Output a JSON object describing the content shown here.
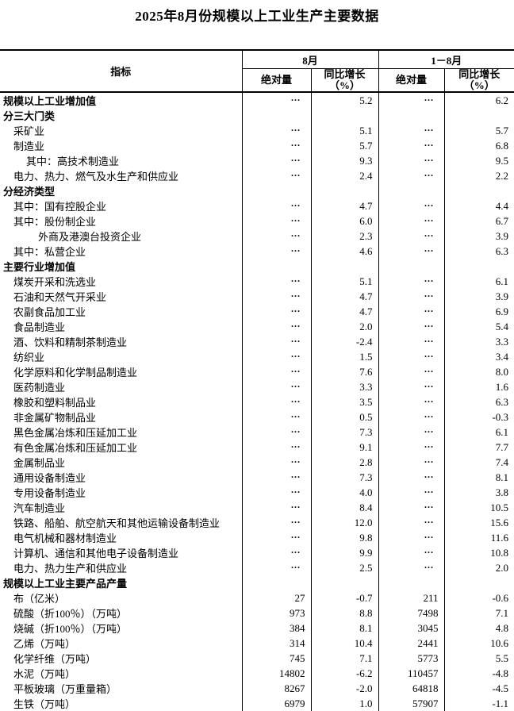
{
  "title": "2025年8月份规模以上工业生产主要数据",
  "table": {
    "header": {
      "indicator": "指标",
      "group_aug": "8月",
      "group_cum": "1－8月",
      "abs_label": "绝对量",
      "yoy_label": "同比增长",
      "yoy_unit": "（%）"
    },
    "rows": [
      {
        "label": "规模以上工业增加值",
        "indent": 0,
        "bold": true,
        "aug_abs": "···",
        "aug_yoy": "5.2",
        "cum_abs": "···",
        "cum_yoy": "6.2"
      },
      {
        "label": "分三大门类",
        "indent": 0,
        "bold": true,
        "aug_abs": "",
        "aug_yoy": "",
        "cum_abs": "",
        "cum_yoy": ""
      },
      {
        "label": "采矿业",
        "indent": 1,
        "bold": false,
        "aug_abs": "···",
        "aug_yoy": "5.1",
        "cum_abs": "···",
        "cum_yoy": "5.7"
      },
      {
        "label": "制造业",
        "indent": 1,
        "bold": false,
        "aug_abs": "···",
        "aug_yoy": "5.7",
        "cum_abs": "···",
        "cum_yoy": "6.8"
      },
      {
        "label": "其中：高技术制造业",
        "indent": 2,
        "bold": false,
        "aug_abs": "···",
        "aug_yoy": "9.3",
        "cum_abs": "···",
        "cum_yoy": "9.5"
      },
      {
        "label": "电力、热力、燃气及水生产和供应业",
        "indent": 1,
        "bold": false,
        "aug_abs": "···",
        "aug_yoy": "2.4",
        "cum_abs": "···",
        "cum_yoy": "2.2"
      },
      {
        "label": "分经济类型",
        "indent": 0,
        "bold": true,
        "aug_abs": "",
        "aug_yoy": "",
        "cum_abs": "",
        "cum_yoy": ""
      },
      {
        "label": "其中：国有控股企业",
        "indent": 1,
        "bold": false,
        "aug_abs": "···",
        "aug_yoy": "4.7",
        "cum_abs": "···",
        "cum_yoy": "4.4"
      },
      {
        "label": "其中：股份制企业",
        "indent": 1,
        "bold": false,
        "aug_abs": "···",
        "aug_yoy": "6.0",
        "cum_abs": "···",
        "cum_yoy": "6.7"
      },
      {
        "label": "外商及港澳台投资企业",
        "indent": 3,
        "bold": false,
        "aug_abs": "···",
        "aug_yoy": "2.3",
        "cum_abs": "···",
        "cum_yoy": "3.9"
      },
      {
        "label": "其中：私营企业",
        "indent": 1,
        "bold": false,
        "aug_abs": "···",
        "aug_yoy": "4.6",
        "cum_abs": "···",
        "cum_yoy": "6.3"
      },
      {
        "label": "主要行业增加值",
        "indent": 0,
        "bold": true,
        "aug_abs": "",
        "aug_yoy": "",
        "cum_abs": "",
        "cum_yoy": ""
      },
      {
        "label": "煤炭开采和洗选业",
        "indent": 1,
        "bold": false,
        "aug_abs": "···",
        "aug_yoy": "5.1",
        "cum_abs": "···",
        "cum_yoy": "6.1"
      },
      {
        "label": "石油和天然气开采业",
        "indent": 1,
        "bold": false,
        "aug_abs": "···",
        "aug_yoy": "4.7",
        "cum_abs": "···",
        "cum_yoy": "3.9"
      },
      {
        "label": "农副食品加工业",
        "indent": 1,
        "bold": false,
        "aug_abs": "···",
        "aug_yoy": "4.7",
        "cum_abs": "···",
        "cum_yoy": "6.9"
      },
      {
        "label": "食品制造业",
        "indent": 1,
        "bold": false,
        "aug_abs": "···",
        "aug_yoy": "2.0",
        "cum_abs": "···",
        "cum_yoy": "5.4"
      },
      {
        "label": "酒、饮料和精制茶制造业",
        "indent": 1,
        "bold": false,
        "aug_abs": "···",
        "aug_yoy": "-2.4",
        "cum_abs": "···",
        "cum_yoy": "3.3"
      },
      {
        "label": "纺织业",
        "indent": 1,
        "bold": false,
        "aug_abs": "···",
        "aug_yoy": "1.5",
        "cum_abs": "···",
        "cum_yoy": "3.4"
      },
      {
        "label": "化学原料和化学制品制造业",
        "indent": 1,
        "bold": false,
        "aug_abs": "···",
        "aug_yoy": "7.6",
        "cum_abs": "···",
        "cum_yoy": "8.0"
      },
      {
        "label": "医药制造业",
        "indent": 1,
        "bold": false,
        "aug_abs": "···",
        "aug_yoy": "3.3",
        "cum_abs": "···",
        "cum_yoy": "1.6"
      },
      {
        "label": "橡胶和塑料制品业",
        "indent": 1,
        "bold": false,
        "aug_abs": "···",
        "aug_yoy": "3.5",
        "cum_abs": "···",
        "cum_yoy": "6.3"
      },
      {
        "label": "非金属矿物制品业",
        "indent": 1,
        "bold": false,
        "aug_abs": "···",
        "aug_yoy": "0.5",
        "cum_abs": "···",
        "cum_yoy": "-0.3"
      },
      {
        "label": "黑色金属冶炼和压延加工业",
        "indent": 1,
        "bold": false,
        "aug_abs": "···",
        "aug_yoy": "7.3",
        "cum_abs": "···",
        "cum_yoy": "6.1"
      },
      {
        "label": "有色金属冶炼和压延加工业",
        "indent": 1,
        "bold": false,
        "aug_abs": "···",
        "aug_yoy": "9.1",
        "cum_abs": "···",
        "cum_yoy": "7.7"
      },
      {
        "label": "金属制品业",
        "indent": 1,
        "bold": false,
        "aug_abs": "···",
        "aug_yoy": "2.8",
        "cum_abs": "···",
        "cum_yoy": "7.4"
      },
      {
        "label": "通用设备制造业",
        "indent": 1,
        "bold": false,
        "aug_abs": "···",
        "aug_yoy": "7.3",
        "cum_abs": "···",
        "cum_yoy": "8.1"
      },
      {
        "label": "专用设备制造业",
        "indent": 1,
        "bold": false,
        "aug_abs": "···",
        "aug_yoy": "4.0",
        "cum_abs": "···",
        "cum_yoy": "3.8"
      },
      {
        "label": "汽车制造业",
        "indent": 1,
        "bold": false,
        "aug_abs": "···",
        "aug_yoy": "8.4",
        "cum_abs": "···",
        "cum_yoy": "10.5"
      },
      {
        "label": "铁路、船舶、航空航天和其他运输设备制造业",
        "indent": 1,
        "bold": false,
        "aug_abs": "···",
        "aug_yoy": "12.0",
        "cum_abs": "···",
        "cum_yoy": "15.6"
      },
      {
        "label": "电气机械和器材制造业",
        "indent": 1,
        "bold": false,
        "aug_abs": "···",
        "aug_yoy": "9.8",
        "cum_abs": "···",
        "cum_yoy": "11.6"
      },
      {
        "label": "计算机、通信和其他电子设备制造业",
        "indent": 1,
        "bold": false,
        "aug_abs": "···",
        "aug_yoy": "9.9",
        "cum_abs": "···",
        "cum_yoy": "10.8"
      },
      {
        "label": "电力、热力生产和供应业",
        "indent": 1,
        "bold": false,
        "aug_abs": "···",
        "aug_yoy": "2.5",
        "cum_abs": "···",
        "cum_yoy": "2.0"
      },
      {
        "label": "规模以上工业主要产品产量",
        "indent": 0,
        "bold": true,
        "aug_abs": "",
        "aug_yoy": "",
        "cum_abs": "",
        "cum_yoy": ""
      },
      {
        "label": "布（亿米）",
        "indent": 1,
        "bold": false,
        "aug_abs": "27",
        "aug_yoy": "-0.7",
        "cum_abs": "211",
        "cum_yoy": "-0.6"
      },
      {
        "label": "硫酸（折100％）（万吨）",
        "indent": 1,
        "bold": false,
        "aug_abs": "973",
        "aug_yoy": "8.8",
        "cum_abs": "7498",
        "cum_yoy": "7.1"
      },
      {
        "label": "烧碱（折100％）（万吨）",
        "indent": 1,
        "bold": false,
        "aug_abs": "384",
        "aug_yoy": "8.1",
        "cum_abs": "3045",
        "cum_yoy": "4.8"
      },
      {
        "label": "乙烯（万吨）",
        "indent": 1,
        "bold": false,
        "aug_abs": "314",
        "aug_yoy": "10.4",
        "cum_abs": "2441",
        "cum_yoy": "10.6"
      },
      {
        "label": "化学纤维（万吨）",
        "indent": 1,
        "bold": false,
        "aug_abs": "745",
        "aug_yoy": "7.1",
        "cum_abs": "5773",
        "cum_yoy": "5.5"
      },
      {
        "label": "水泥（万吨）",
        "indent": 1,
        "bold": false,
        "aug_abs": "14802",
        "aug_yoy": "-6.2",
        "cum_abs": "110457",
        "cum_yoy": "-4.8"
      },
      {
        "label": "平板玻璃（万重量箱）",
        "indent": 1,
        "bold": false,
        "aug_abs": "8267",
        "aug_yoy": "-2.0",
        "cum_abs": "64818",
        "cum_yoy": "-4.5"
      },
      {
        "label": "生铁（万吨）",
        "indent": 1,
        "bold": false,
        "aug_abs": "6979",
        "aug_yoy": "1.0",
        "cum_abs": "57907",
        "cum_yoy": "-1.1"
      }
    ]
  }
}
